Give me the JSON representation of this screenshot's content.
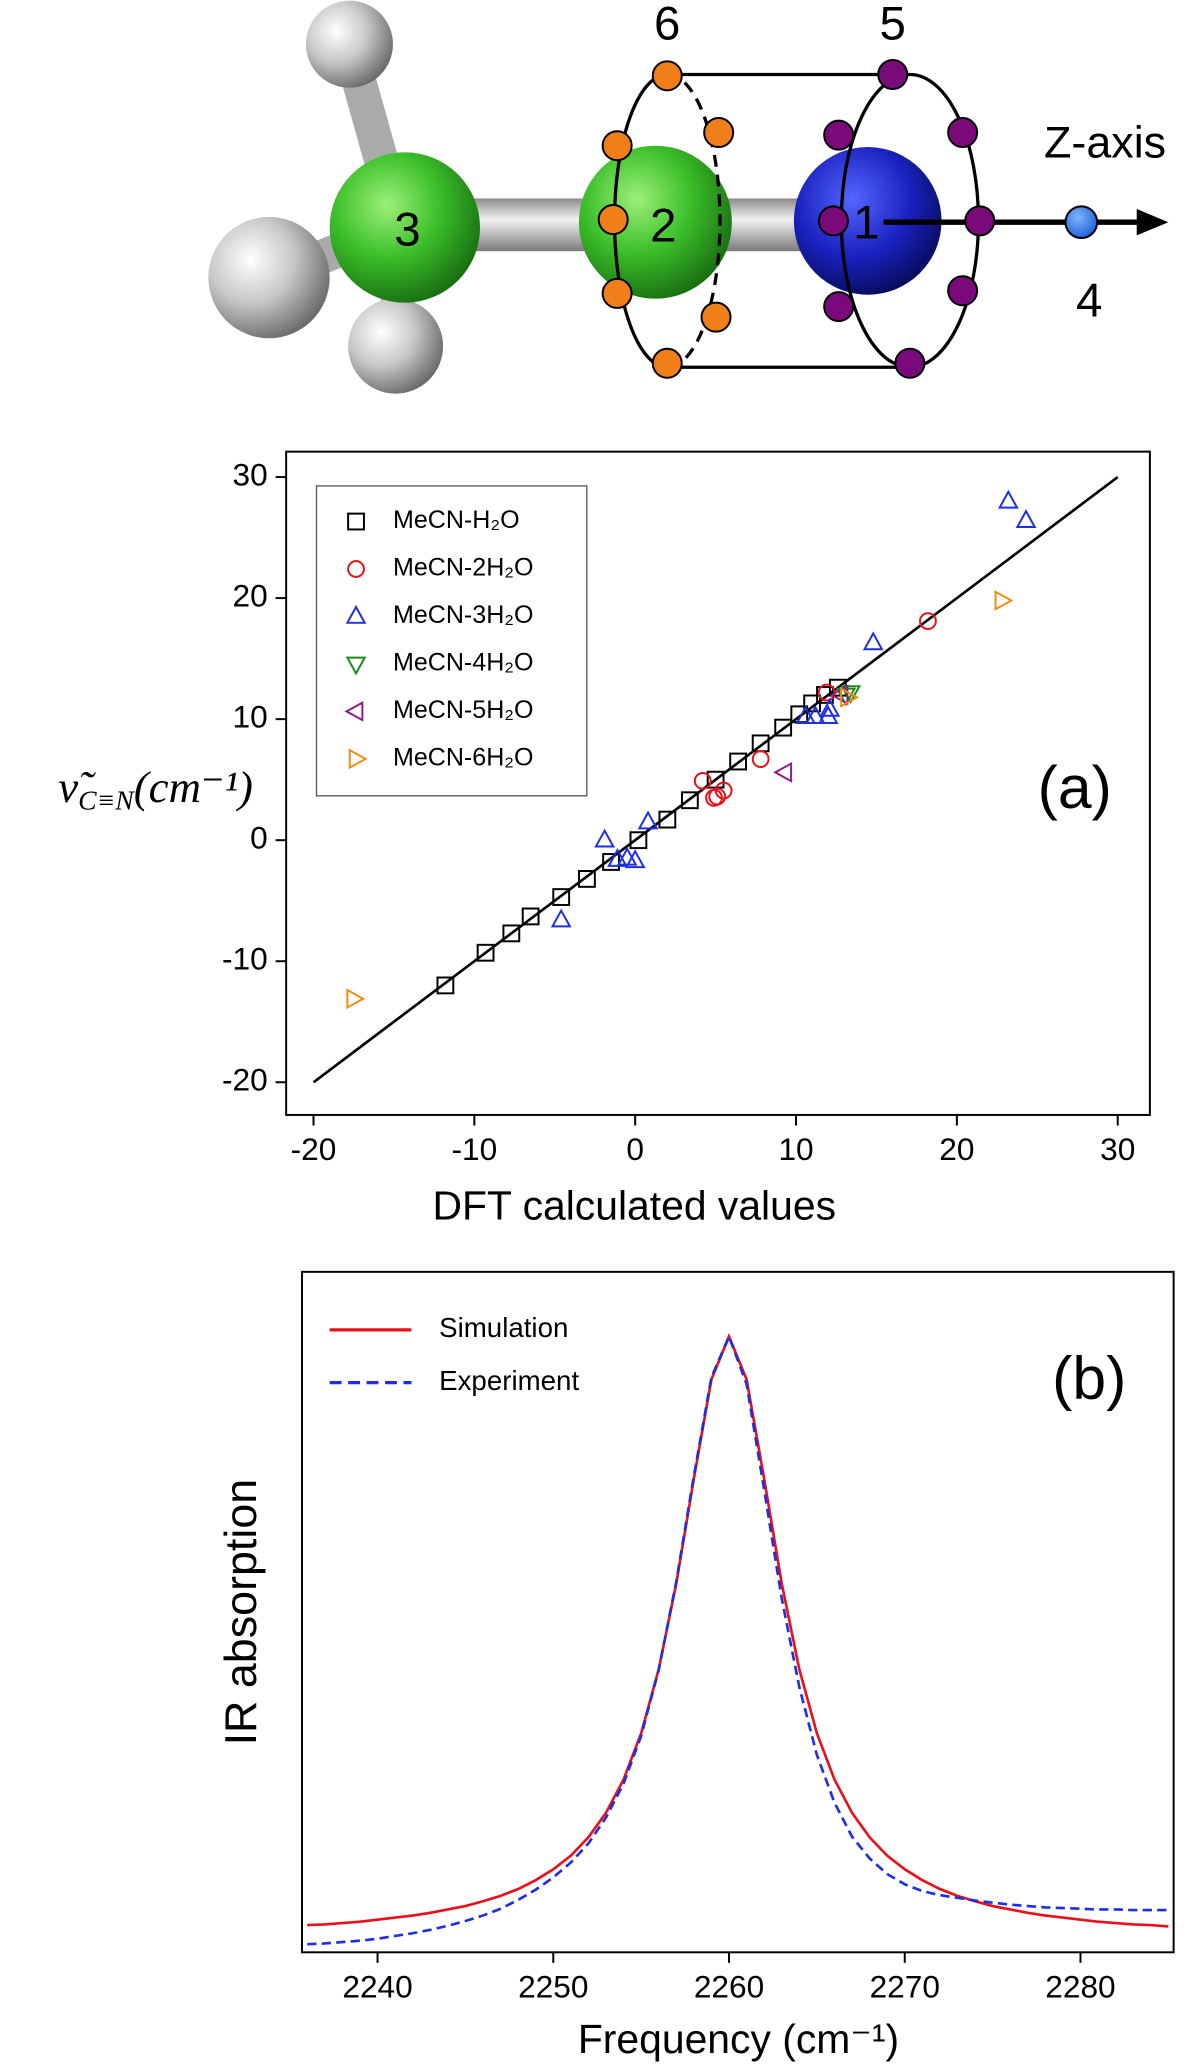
{
  "diagram": {
    "atoms": [
      "1",
      "2",
      "3",
      "4"
    ],
    "ring_labels": [
      "5",
      "6"
    ],
    "axis_label": "Z-axis"
  },
  "chart_data": [
    {
      "type": "scatter",
      "annotation": "(a)",
      "x_label": "DFT calculated values",
      "y_label": {
        "symbol": "ν̃",
        "subscript": "C≡N",
        "unit": "(cm⁻¹)"
      },
      "xlim": [
        -21.7,
        32
      ],
      "ylim": [
        -22.7,
        32.1
      ],
      "xticks": [
        -20,
        -10,
        0,
        10,
        20,
        30
      ],
      "yticks": [
        -20,
        -10,
        0,
        10,
        20,
        30
      ],
      "legend": "upper left",
      "fit_line": {
        "color": "#000000",
        "x": [
          -20,
          30
        ],
        "y": [
          -20,
          30
        ]
      },
      "series": [
        {
          "name": "MeCN-H₂O",
          "color": "#000000",
          "marker": "square",
          "x": [
            -11.8,
            -9.3,
            -7.7,
            -6.5,
            -4.6,
            -3.0,
            -1.5,
            0.2,
            2.0,
            3.4,
            5.0,
            6.4,
            7.8,
            9.2,
            10.2,
            11.0,
            11.8,
            12.6
          ],
          "values": [
            -12.0,
            -9.3,
            -7.7,
            -6.3,
            -4.7,
            -3.2,
            -1.8,
            0.0,
            1.7,
            3.3,
            5.0,
            6.5,
            8.0,
            9.3,
            10.4,
            11.3,
            12.0,
            12.6
          ]
        },
        {
          "name": "MeCN-2H₂O",
          "color": "#e8101a",
          "marker": "circle",
          "x": [
            4.2,
            5.1,
            5.5,
            4.9,
            7.8,
            11.9,
            18.2
          ],
          "values": [
            4.9,
            3.6,
            4.1,
            3.5,
            6.7,
            12.2,
            18.1
          ]
        },
        {
          "name": "MeCN-3H₂O",
          "color": "#1f2ee0",
          "marker": "triangle-up",
          "x": [
            -4.6,
            -1.9,
            -1.1,
            -0.5,
            0.0,
            0.8,
            10.6,
            11.2,
            12.0,
            12.1,
            14.8,
            23.2,
            24.3
          ],
          "values": [
            -6.6,
            0.0,
            -1.6,
            -1.5,
            -1.7,
            1.5,
            10.2,
            10.2,
            10.2,
            10.8,
            16.3,
            28.0,
            26.4
          ]
        },
        {
          "name": "MeCN-4H₂O",
          "color": "#1a8a1a",
          "marker": "triangle-down",
          "x": [
            13.1,
            13.4
          ],
          "values": [
            12.0,
            12.2
          ]
        },
        {
          "name": "MeCN-5H₂O",
          "color": "#8b1a8b",
          "marker": "triangle-left",
          "x": [
            9.3,
            12.8
          ],
          "values": [
            5.6,
            12.0
          ]
        },
        {
          "name": "MeCN-6H₂O",
          "color": "#f08c14",
          "marker": "triangle-right",
          "x": [
            -17.5,
            22.8,
            13.2
          ],
          "values": [
            -13.1,
            19.8,
            11.8
          ]
        }
      ]
    },
    {
      "type": "line",
      "annotation": "(b)",
      "x_label": "Frequency (cm⁻¹)",
      "y_label": "IR absorption",
      "xlim": [
        2235.7,
        2285.3
      ],
      "ylim": [
        0,
        1
      ],
      "xticks": [
        2240,
        2250,
        2260,
        2270,
        2280
      ],
      "legend": "upper left",
      "x": [
        2236,
        2237,
        2238,
        2239,
        2240,
        2241,
        2242,
        2243,
        2244,
        2245,
        2246,
        2247,
        2248,
        2249,
        2250,
        2251,
        2252,
        2253,
        2254,
        2255,
        2256,
        2257,
        2258,
        2259,
        2260,
        2261,
        2262,
        2263,
        2264,
        2265,
        2266,
        2267,
        2268,
        2269,
        2270,
        2271,
        2272,
        2273,
        2274,
        2275,
        2276,
        2277,
        2278,
        2279,
        2280,
        2281,
        2282,
        2283,
        2284,
        2285
      ],
      "series": [
        {
          "name": "Simulation",
          "color": "#e8101a",
          "dashed": false,
          "values": [
            0.04,
            0.041,
            0.043,
            0.045,
            0.048,
            0.051,
            0.054,
            0.058,
            0.063,
            0.068,
            0.075,
            0.083,
            0.093,
            0.106,
            0.122,
            0.142,
            0.169,
            0.205,
            0.254,
            0.322,
            0.416,
            0.542,
            0.696,
            0.842,
            0.905,
            0.842,
            0.696,
            0.542,
            0.416,
            0.322,
            0.254,
            0.205,
            0.169,
            0.142,
            0.122,
            0.106,
            0.093,
            0.083,
            0.075,
            0.068,
            0.063,
            0.058,
            0.054,
            0.051,
            0.048,
            0.045,
            0.043,
            0.041,
            0.04,
            0.038
          ]
        },
        {
          "name": "Experiment",
          "color": "#1f2ee0",
          "dashed": true,
          "values": [
            0.012,
            0.013,
            0.015,
            0.017,
            0.02,
            0.024,
            0.028,
            0.033,
            0.039,
            0.046,
            0.054,
            0.064,
            0.077,
            0.092,
            0.11,
            0.132,
            0.16,
            0.198,
            0.248,
            0.318,
            0.415,
            0.545,
            0.7,
            0.845,
            0.905,
            0.835,
            0.68,
            0.52,
            0.39,
            0.29,
            0.22,
            0.17,
            0.138,
            0.115,
            0.1,
            0.09,
            0.084,
            0.08,
            0.076,
            0.073,
            0.07,
            0.068,
            0.066,
            0.065,
            0.064,
            0.063,
            0.063,
            0.062,
            0.062,
            0.062
          ]
        }
      ]
    }
  ]
}
